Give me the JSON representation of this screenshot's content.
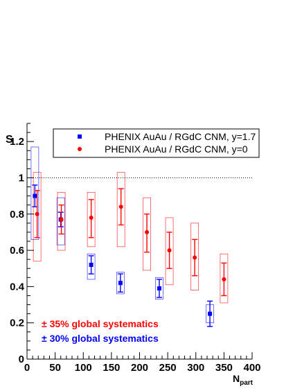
{
  "chart_data": {
    "type": "scatter",
    "xlabel": "N",
    "xlabel_sub": "part",
    "ylabel": "S",
    "xlim": [
      0,
      400
    ],
    "ylim": [
      0,
      1.3
    ],
    "x_ticks": [
      0,
      50,
      100,
      150,
      200,
      250,
      300,
      350,
      400
    ],
    "y_ticks": [
      0,
      0.2,
      0.4,
      0.6,
      0.8,
      1,
      1.2
    ],
    "x_tick_labels": [
      "0",
      "50",
      "100",
      "150",
      "200",
      "250",
      "300",
      "350",
      "400"
    ],
    "y_tick_labels": [
      "0",
      "0.2",
      "0.4",
      "0.6",
      "0.8",
      "1",
      "1.2"
    ],
    "reference_line": {
      "y": 1.0,
      "style": "dotted"
    },
    "legend": {
      "placement": "top"
    },
    "series": [
      {
        "name": "PHENIX AuAu / RGdC CNM, y=1.7",
        "color": "#0000ff",
        "marker": "square",
        "points": [
          {
            "x": 14,
            "y": 0.9,
            "err_lo": 0.06,
            "err_hi": 0.06,
            "sys_lo": 0.24,
            "sys_hi": 0.27
          },
          {
            "x": 60,
            "y": 0.77,
            "err_lo": 0.04,
            "err_hi": 0.04,
            "sys_lo": 0.14,
            "sys_hi": 0.12
          },
          {
            "x": 114,
            "y": 0.52,
            "err_lo": 0.05,
            "err_hi": 0.05,
            "sys_lo": 0.08,
            "sys_hi": 0.06
          },
          {
            "x": 166,
            "y": 0.42,
            "err_lo": 0.05,
            "err_hi": 0.05,
            "sys_lo": 0.06,
            "sys_hi": 0.06
          },
          {
            "x": 235,
            "y": 0.39,
            "err_lo": 0.05,
            "err_hi": 0.05,
            "sys_lo": 0.06,
            "sys_hi": 0.06
          },
          {
            "x": 325,
            "y": 0.25,
            "err_lo": 0.07,
            "err_hi": 0.07,
            "sys_lo": 0.05,
            "sys_hi": 0.05
          }
        ]
      },
      {
        "name": "PHENIX AuAu / RGdC CNM, y=0",
        "color": "#ff0000",
        "marker": "circle",
        "points": [
          {
            "x": 18,
            "y": 0.8,
            "err_lo": 0.13,
            "err_hi": 0.13,
            "sys_lo": 0.26,
            "sys_hi": 0.23
          },
          {
            "x": 61,
            "y": 0.77,
            "err_lo": 0.08,
            "err_hi": 0.08,
            "sys_lo": 0.17,
            "sys_hi": 0.15
          },
          {
            "x": 114,
            "y": 0.78,
            "err_lo": 0.11,
            "err_hi": 0.1,
            "sys_lo": 0.16,
            "sys_hi": 0.14
          },
          {
            "x": 167,
            "y": 0.84,
            "err_lo": 0.1,
            "err_hi": 0.1,
            "sys_lo": 0.22,
            "sys_hi": 0.19
          },
          {
            "x": 213,
            "y": 0.7,
            "err_lo": 0.11,
            "err_hi": 0.1,
            "sys_lo": 0.21,
            "sys_hi": 0.19
          },
          {
            "x": 253,
            "y": 0.6,
            "err_lo": 0.1,
            "err_hi": 0.1,
            "sys_lo": 0.19,
            "sys_hi": 0.18
          },
          {
            "x": 298,
            "y": 0.56,
            "err_lo": 0.1,
            "err_hi": 0.1,
            "sys_lo": 0.18,
            "sys_hi": 0.19
          },
          {
            "x": 350,
            "y": 0.44,
            "err_lo": 0.09,
            "err_hi": 0.09,
            "sys_lo": 0.13,
            "sys_hi": 0.14
          }
        ]
      }
    ],
    "annotations": [
      {
        "text": "± 35% global systematics",
        "color": "#ff0000"
      },
      {
        "text": "± 30% global systematics",
        "color": "#0000ff"
      }
    ]
  }
}
